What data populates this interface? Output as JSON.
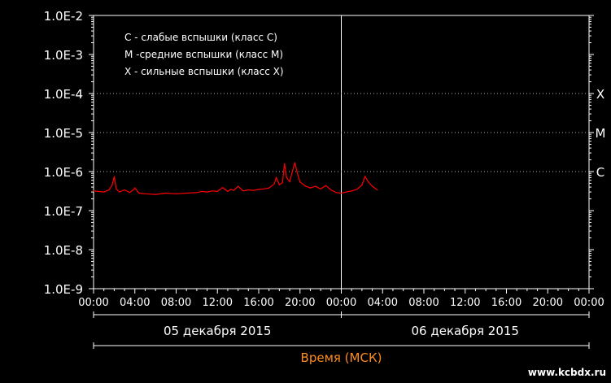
{
  "chart_data": {
    "type": "line",
    "yscale": "log",
    "ylim": [
      "1.0E-9",
      "1.0E-2"
    ],
    "yticks": [
      "1.0E-2",
      "1.0E-3",
      "1.0E-4",
      "1.0E-5",
      "1.0E-6",
      "1.0E-7",
      "1.0E-8",
      "1.0E-9"
    ],
    "xticks": [
      "00:00",
      "04:00",
      "08:00",
      "12:00",
      "16:00",
      "20:00",
      "00:00",
      "04:00",
      "08:00",
      "12:00",
      "16:00",
      "20:00",
      "00:00"
    ],
    "xlabel": "Время (МСК)",
    "days": [
      "05 декабря 2015",
      "06 декабря 2015"
    ],
    "legend": [
      "C - слабые вспышки (класс C)",
      "M -средние вспышки (класс M)",
      "X - сильные вспышки (класс X)"
    ],
    "threshold_lines": [
      {
        "label": "X",
        "value": 0.0001
      },
      {
        "label": "M",
        "value": 1e-05
      },
      {
        "label": "C",
        "value": 1e-06
      }
    ],
    "series": [
      {
        "color": "#ff0000",
        "x_hours": [
          0,
          1,
          1.5,
          1.8,
          2.0,
          2.2,
          2.5,
          3.0,
          3.5,
          3.8,
          4.0,
          4.4,
          5.0,
          6.0,
          7.0,
          8.0,
          9.0,
          10.0,
          10.5,
          11.0,
          11.5,
          12.0,
          12.5,
          13.0,
          13.3,
          13.6,
          14.0,
          14.5,
          15.0,
          15.5,
          16.0,
          16.5,
          17.0,
          17.5,
          17.7,
          18.0,
          18.3,
          18.5,
          18.7,
          19.0,
          19.3,
          19.5,
          19.8,
          20.0,
          20.5,
          21.0,
          21.5,
          22.0,
          22.5,
          23.0,
          23.5,
          24.0,
          24.5,
          25.0,
          25.5,
          26.0,
          26.3,
          26.6,
          27.0,
          27.5
        ],
        "y": [
          3.2e-07,
          3e-07,
          3.4e-07,
          4.5e-07,
          7.5e-07,
          3.6e-07,
          3e-07,
          3.4e-07,
          2.9e-07,
          3.3e-07,
          3.8e-07,
          2.8e-07,
          2.7e-07,
          2.6e-07,
          2.8e-07,
          2.7e-07,
          2.8e-07,
          2.9e-07,
          3.1e-07,
          3e-07,
          3.2e-07,
          3.1e-07,
          3.9e-07,
          3.1e-07,
          3.5e-07,
          3.3e-07,
          4.2e-07,
          3.2e-07,
          3.4e-07,
          3.3e-07,
          3.5e-07,
          3.6e-07,
          3.8e-07,
          4.8e-07,
          7e-07,
          4.6e-07,
          5.2e-07,
          1.6e-06,
          7e-07,
          5.5e-07,
          1.1e-06,
          1.7e-06,
          8e-07,
          5.4e-07,
          4.3e-07,
          3.8e-07,
          4.2e-07,
          3.6e-07,
          4.4e-07,
          3.4e-07,
          2.9e-07,
          2.8e-07,
          3e-07,
          3.2e-07,
          3.5e-07,
          4.5e-07,
          7.5e-07,
          5.5e-07,
          4.2e-07,
          3.4e-07
        ]
      }
    ]
  },
  "watermark": "www.kcbdx.ru"
}
